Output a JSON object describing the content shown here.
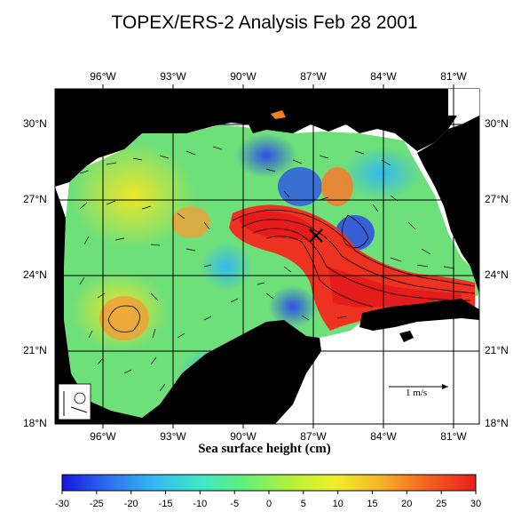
{
  "title": "TOPEX/ERS-2 Analysis Feb 28 2001",
  "x_axis": {
    "label": "Sea surface height (cm)",
    "ticks": [
      "96°W",
      "93°W",
      "90°W",
      "87°W",
      "84°W",
      "81°W"
    ]
  },
  "y_axis": {
    "ticks": [
      "30°N",
      "27°N",
      "24°N",
      "21°N",
      "18°N"
    ]
  },
  "scale_arrow_label": "1 m/s",
  "colorbar": {
    "ticks": [
      "-30",
      "-25",
      "-20",
      "-15",
      "-10",
      "-5",
      "0",
      "5",
      "10",
      "15",
      "20",
      "25",
      "30"
    ],
    "stops": [
      "#1515e0",
      "#2e6df0",
      "#33b8f0",
      "#40e6c8",
      "#60f07a",
      "#b4f03c",
      "#f0f028",
      "#f5b428",
      "#f56420",
      "#e81e1e"
    ]
  },
  "map": {
    "lon_range": [
      "98°W",
      "80°W"
    ],
    "lat_range": [
      "18°N",
      "31°N"
    ],
    "marker": "x-marker at eddy center"
  }
}
